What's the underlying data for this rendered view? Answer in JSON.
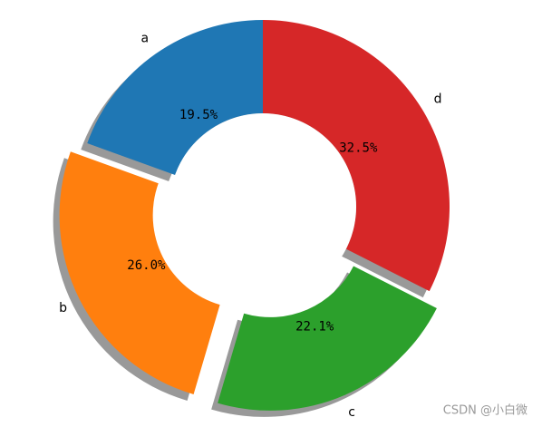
{
  "chart_data": {
    "type": "donut",
    "categories": [
      "a",
      "b",
      "c",
      "d"
    ],
    "values": [
      19.5,
      26.0,
      22.1,
      32.5
    ],
    "value_labels": [
      "19.5%",
      "26.0%",
      "22.1%",
      "32.5%"
    ],
    "colors": [
      "#1f77b4",
      "#ff7f0e",
      "#2ca02c",
      "#d62728"
    ],
    "explode": [
      0,
      0.1,
      0.1,
      0
    ],
    "shadow": true,
    "startangle": 90
  },
  "watermark": "CSDN @小白微"
}
